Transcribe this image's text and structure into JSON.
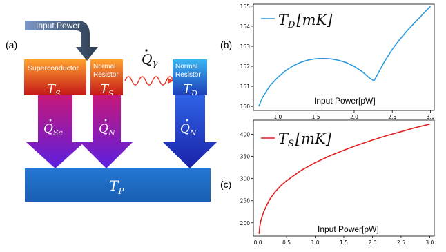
{
  "diagram": {
    "panel_label": "(a)",
    "input_power_label": "Input Power",
    "superconductor_label": "Superconductor",
    "normal_resistor_label_1": "Normal",
    "normal_resistor_label_2": "Resistor",
    "detector_label_1": "Normal",
    "detector_label_2": "Resistor",
    "ts_symbol": "T",
    "ts_sub": "S",
    "td_symbol": "T",
    "td_sub": "D",
    "tp_symbol": "T",
    "tp_sub": "P",
    "q_symbol": "Q",
    "q_gamma_sub": "γ",
    "q_sc_sub": "Sc",
    "q_n_sub": "N",
    "colors": {
      "superconductor_top": "#ff9f2e",
      "superconductor_bottom": "#c01a1a",
      "detector_top": "#3fb0f0",
      "detector_bottom": "#1f3fbf",
      "bath": "#1f6fc6",
      "purple_arrow": "#9a1fbf",
      "blue_arrow": "#2333c8",
      "wave": "#e53b2b"
    }
  },
  "chart_b": {
    "panel_label": "(b)",
    "legend": "T_D [mK]",
    "legend_main": "T",
    "legend_sub": "D",
    "legend_unit": "[mK]",
    "xlabel": "Input Power[pW]",
    "color": "#2b9be0"
  },
  "chart_c": {
    "panel_label": "(c)",
    "legend": "T_S [mK]",
    "legend_main": "T",
    "legend_sub": "S",
    "legend_unit": "[mK]",
    "xlabel": "Input Power[pW]",
    "color": "#e02020"
  },
  "chart_data": [
    {
      "type": "line",
      "xlabel": "Input Power[pW]",
      "ylabel": "",
      "xlim": [
        0.68,
        3.05
      ],
      "ylim": [
        149.8,
        155.1
      ],
      "xticks": [
        "1.0",
        "1.5",
        "2.0",
        "2.5",
        "3.0"
      ],
      "yticks": [
        "150",
        "151",
        "152",
        "153",
        "154",
        "155"
      ],
      "series": [
        {
          "name": "T_D [mK]",
          "x": [
            0.75,
            0.8,
            0.9,
            1.0,
            1.1,
            1.2,
            1.3,
            1.4,
            1.5,
            1.6,
            1.7,
            1.8,
            1.9,
            2.0,
            2.1,
            2.2,
            2.26,
            2.3,
            2.4,
            2.5,
            2.6,
            2.7,
            2.8,
            2.9,
            3.0
          ],
          "y": [
            150.0,
            150.45,
            151.05,
            151.45,
            151.78,
            152.02,
            152.2,
            152.32,
            152.38,
            152.39,
            152.37,
            152.3,
            152.18,
            152.0,
            151.75,
            151.42,
            151.28,
            151.55,
            152.25,
            152.85,
            153.35,
            153.8,
            154.2,
            154.6,
            155.0
          ]
        }
      ]
    },
    {
      "type": "line",
      "xlabel": "Input Power[pW]",
      "ylabel": "",
      "xlim": [
        -0.08,
        3.08
      ],
      "ylim": [
        170,
        432
      ],
      "xticks": [
        "0.0",
        "0.5",
        "1.0",
        "1.5",
        "2.0",
        "2.5",
        "3.0"
      ],
      "yticks": [
        "200",
        "250",
        "300",
        "350",
        "400"
      ],
      "series": [
        {
          "name": "T_S [mK]",
          "x": [
            0.02,
            0.03,
            0.05,
            0.1,
            0.2,
            0.3,
            0.4,
            0.5,
            0.75,
            1.0,
            1.25,
            1.5,
            1.75,
            2.0,
            2.25,
            2.5,
            2.75,
            3.0
          ],
          "y": [
            175,
            190,
            205,
            225,
            252,
            270,
            284,
            295,
            318,
            336,
            351,
            364,
            376,
            387,
            397,
            406,
            415,
            423
          ]
        }
      ]
    }
  ]
}
